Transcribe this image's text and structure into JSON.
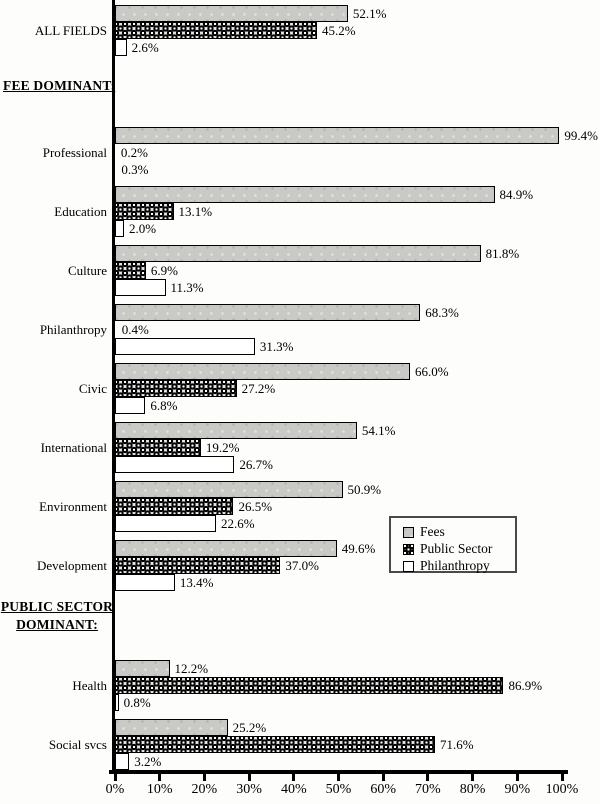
{
  "chart_data": {
    "type": "bar",
    "orientation": "horizontal",
    "title": "",
    "xlabel": "",
    "ylabel": "",
    "unit": "%",
    "xlim": [
      0,
      100
    ],
    "grid": false,
    "x_ticks": [
      "0%",
      "10%",
      "20%",
      "30%",
      "40%",
      "50%",
      "60%",
      "70%",
      "80%",
      "90%",
      "100%"
    ],
    "series_names": [
      "Fees",
      "Public Sector",
      "Philanthropy"
    ],
    "legend": {
      "position": "middle-right",
      "entries": [
        {
          "label": "Fees",
          "swatch": "fees"
        },
        {
          "label": "Public Sector",
          "swatch": "public-sector"
        },
        {
          "label": "Philanthropy",
          "swatch": "philanthropy"
        }
      ]
    },
    "colors": {
      "fees_fill": "#c9c9c6",
      "public_sector_pattern": "#000000",
      "philanthropy_fill": "#ffffff",
      "bar_border": "#000000",
      "background": "#fdfdfb"
    },
    "sections": [
      {
        "header_lines": [],
        "rows": [
          {
            "label": "ALL FIELDS",
            "values": [
              52.1,
              45.2,
              2.6
            ]
          }
        ]
      },
      {
        "header_lines": [
          "FEE DOMINANT:"
        ],
        "rows": [
          {
            "label": "Professional",
            "values": [
              99.4,
              0.2,
              0.3
            ]
          },
          {
            "label": "Education",
            "values": [
              84.9,
              13.1,
              2.0
            ]
          },
          {
            "label": "Culture",
            "values": [
              81.8,
              6.9,
              11.3
            ]
          },
          {
            "label": "Philanthropy",
            "values": [
              68.3,
              0.4,
              31.3
            ]
          },
          {
            "label": "Civic",
            "values": [
              66.0,
              27.2,
              6.8
            ]
          },
          {
            "label": "International",
            "values": [
              54.1,
              19.2,
              26.7
            ]
          },
          {
            "label": "Environment",
            "values": [
              50.9,
              26.5,
              22.6
            ]
          },
          {
            "label": "Development",
            "values": [
              49.6,
              37.0,
              13.4
            ]
          }
        ]
      },
      {
        "header_lines": [
          "PUBLIC SECTOR",
          "DOMINANT:"
        ],
        "rows": [
          {
            "label": "Health",
            "values": [
              12.2,
              86.9,
              0.8
            ]
          },
          {
            "label": "Social svcs",
            "values": [
              25.2,
              71.6,
              3.2
            ]
          }
        ]
      }
    ]
  }
}
